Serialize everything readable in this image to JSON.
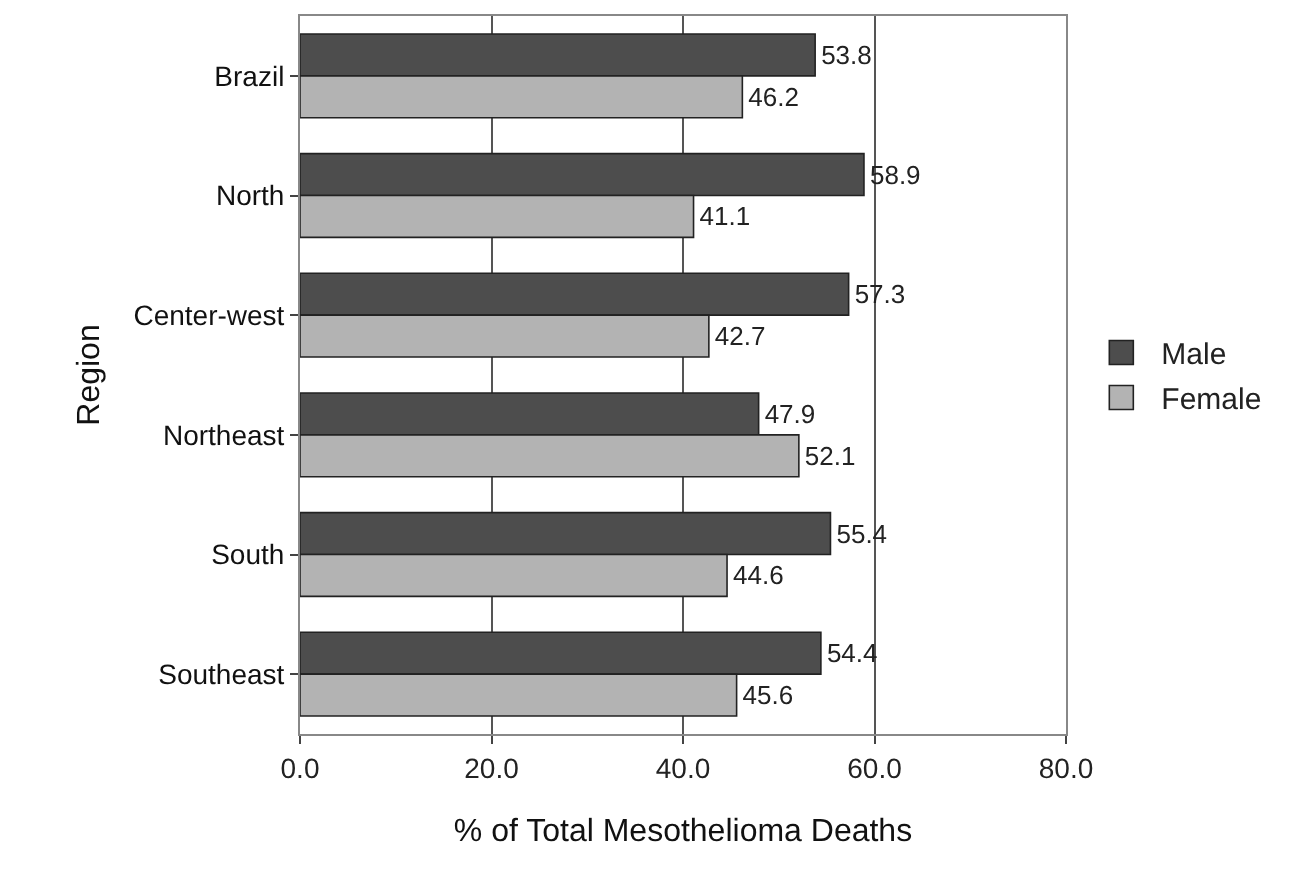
{
  "chart_data": {
    "type": "bar",
    "orientation": "horizontal",
    "xlabel": "% of Total Mesothelioma Deaths",
    "ylabel": "Region",
    "categories": [
      "Brazil",
      "North",
      "Center-west",
      "Northeast",
      "South",
      "Southeast"
    ],
    "series": [
      {
        "name": "Male",
        "color": "#4d4d4d",
        "values": [
          53.8,
          58.9,
          57.3,
          47.9,
          55.4,
          54.4
        ]
      },
      {
        "name": "Female",
        "color": "#b3b3b3",
        "values": [
          46.2,
          41.1,
          42.7,
          52.1,
          44.6,
          45.6
        ]
      }
    ],
    "xlim": [
      0,
      80
    ],
    "xticks": [
      {
        "value": 0,
        "label": "0.0"
      },
      {
        "value": 20,
        "label": "20.0"
      },
      {
        "value": 40,
        "label": "40.0"
      },
      {
        "value": 60,
        "label": "60.0"
      },
      {
        "value": 80,
        "label": "80.0"
      }
    ],
    "grid": "x",
    "legend": "right",
    "data_labels": true
  }
}
